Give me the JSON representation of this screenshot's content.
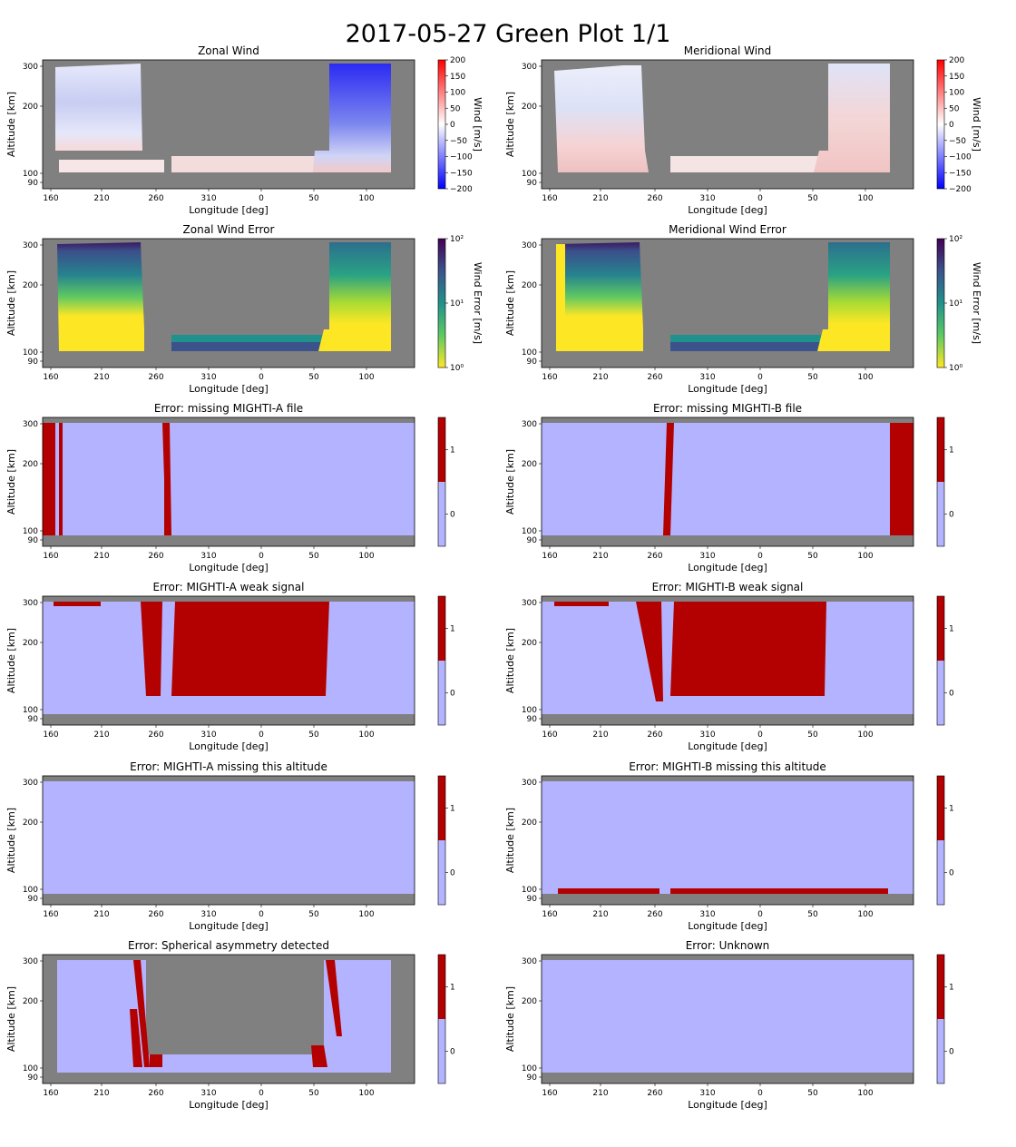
{
  "suptitle": "2017-05-27 Green Plot 1/1",
  "xaxis": {
    "label": "Longitude [deg]",
    "ticks": [
      "160",
      "210",
      "260",
      "310",
      "0",
      "50",
      "100"
    ]
  },
  "yaxis": {
    "label": "Altitude [km]",
    "ticks": [
      "300",
      "200",
      "100",
      "90"
    ],
    "tick_values": [
      300,
      200,
      100,
      90
    ]
  },
  "colors": {
    "flag_zero": "#b3b3ff",
    "flag_one": "#b30000",
    "masked": "#808080"
  },
  "chart_data": [
    {
      "type": "heatmap",
      "title": "Zonal Wind",
      "colorbar": "diverging",
      "cbar_label": "Wind [m/s]",
      "cbar_ticks": [
        "200",
        "150",
        "100",
        "50",
        "0",
        "−50",
        "−100",
        "−150",
        "−200"
      ]
    },
    {
      "type": "heatmap",
      "title": "Meridional Wind",
      "colorbar": "diverging",
      "cbar_label": "Wind [m/s]",
      "cbar_ticks": [
        "200",
        "150",
        "100",
        "50",
        "0",
        "−50",
        "−100",
        "−150",
        "−200"
      ]
    },
    {
      "type": "heatmap",
      "title": "Zonal Wind Error",
      "colorbar": "viridis",
      "cbar_label": "Wind Error [m/s]",
      "cbar_ticks": [
        "10²",
        "10¹",
        "10⁰"
      ],
      "scale": "log"
    },
    {
      "type": "heatmap",
      "title": "Meridional Wind Error",
      "colorbar": "viridis",
      "cbar_label": "Wind Error [m/s]",
      "cbar_ticks": [
        "10²",
        "10¹",
        "10⁰"
      ],
      "scale": "log"
    },
    {
      "type": "heatmap",
      "title": "Error: missing MIGHTI-A file",
      "colorbar": "binary",
      "cbar_ticks": [
        "1",
        "0"
      ]
    },
    {
      "type": "heatmap",
      "title": "Error: missing MIGHTI-B file",
      "colorbar": "binary",
      "cbar_ticks": [
        "1",
        "0"
      ]
    },
    {
      "type": "heatmap",
      "title": "Error: MIGHTI-A weak signal",
      "colorbar": "binary",
      "cbar_ticks": [
        "1",
        "0"
      ]
    },
    {
      "type": "heatmap",
      "title": "Error: MIGHTI-B weak signal",
      "colorbar": "binary",
      "cbar_ticks": [
        "1",
        "0"
      ]
    },
    {
      "type": "heatmap",
      "title": "Error: MIGHTI-A missing this altitude",
      "colorbar": "binary",
      "cbar_ticks": [
        "1",
        "0"
      ]
    },
    {
      "type": "heatmap",
      "title": "Error: MIGHTI-B missing this altitude",
      "colorbar": "binary",
      "cbar_ticks": [
        "1",
        "0"
      ]
    },
    {
      "type": "heatmap",
      "title": "Error: Spherical asymmetry detected",
      "colorbar": "binary",
      "cbar_ticks": [
        "1",
        "0"
      ]
    },
    {
      "type": "heatmap",
      "title": "Error: Unknown",
      "colorbar": "binary",
      "cbar_ticks": [
        "1",
        "0"
      ]
    }
  ]
}
